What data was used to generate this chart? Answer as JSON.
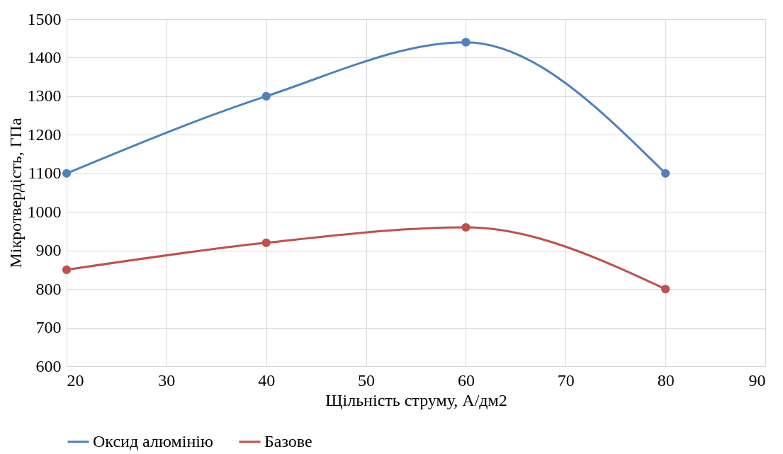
{
  "chart_data": {
    "type": "line",
    "xlabel": "Щільність струму, А/дм2",
    "ylabel": "Мікротвердість, ГПа",
    "x": [
      20,
      40,
      60,
      80
    ],
    "series": [
      {
        "name": "Оксид алюмінію",
        "color": "#4f81bd",
        "values": [
          1100,
          1300,
          1440,
          1100
        ]
      },
      {
        "name": "Базове",
        "color": "#c0504d",
        "values": [
          850,
          920,
          960,
          800
        ]
      }
    ],
    "xlim": [
      20,
      90
    ],
    "xticks": [
      20,
      30,
      40,
      50,
      60,
      70,
      80,
      90
    ],
    "ylim": [
      600,
      1500
    ],
    "yticks": [
      600,
      700,
      800,
      900,
      1000,
      1100,
      1200,
      1300,
      1400,
      1500
    ],
    "grid": true,
    "legend": "bottom",
    "marker": "circle",
    "line_style": "solid"
  }
}
